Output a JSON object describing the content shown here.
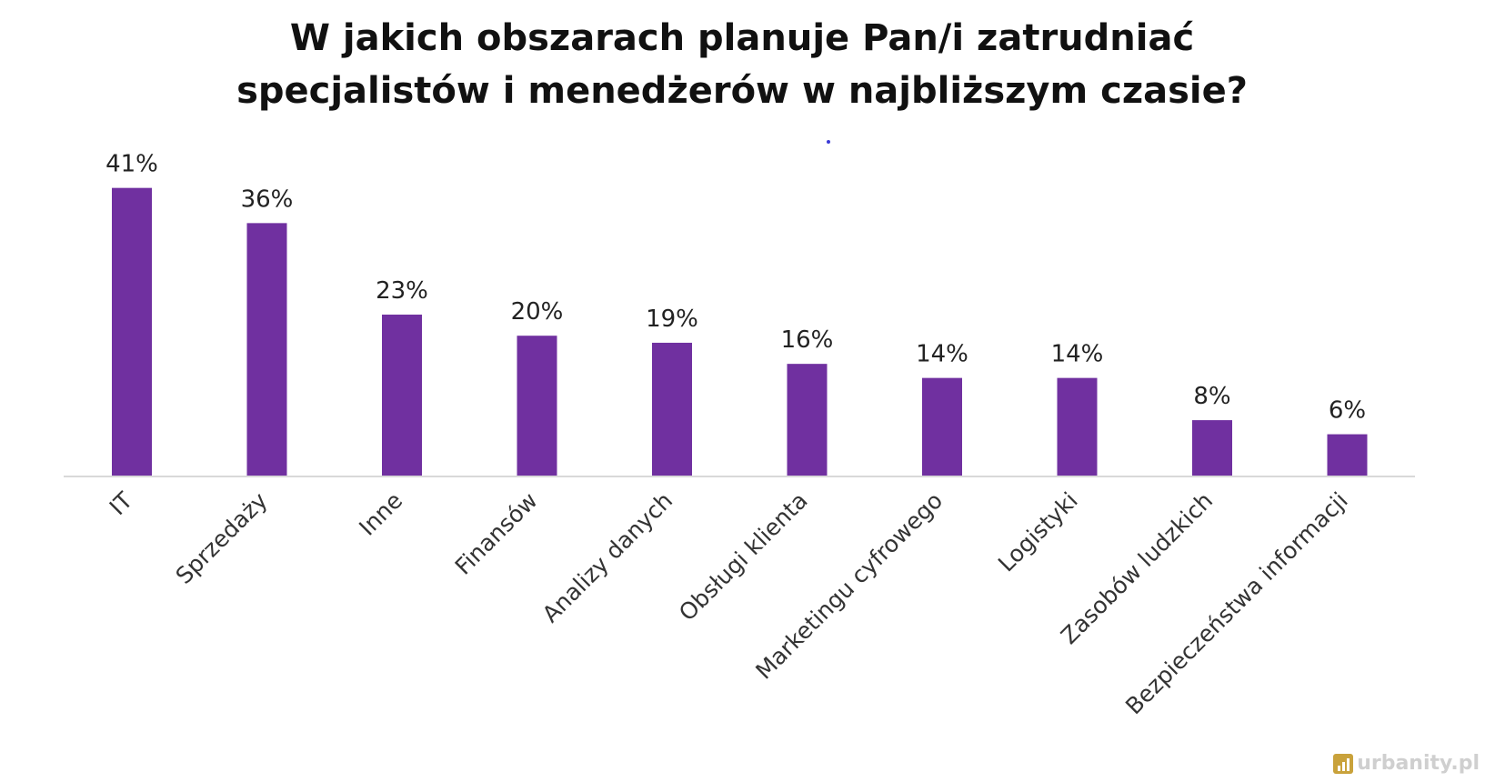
{
  "chart_data": {
    "type": "bar",
    "title": [
      "W jakich obszarach planuje Pan/i zatrudniać",
      "specjalistów i menedżerów w najbliższym czasie?"
    ],
    "categories": [
      "IT",
      "Sprzedaży",
      "Inne",
      "Finansów",
      "Analizy danych",
      "Obsługi klienta",
      "Marketingu cyfrowego",
      "Logistyki",
      "Zasobów ludzkich",
      "Bezpieczeństwa informacji"
    ],
    "values": [
      41,
      36,
      23,
      20,
      19,
      16,
      14,
      14,
      8,
      6
    ],
    "value_labels": [
      "41%",
      "36%",
      "23%",
      "20%",
      "19%",
      "16%",
      "14%",
      "14%",
      "8%",
      "6%"
    ],
    "ylim": [
      0,
      45
    ],
    "grid": false,
    "bar_color": "#7030a0",
    "axis_color": "#d9d9d9"
  },
  "watermark": {
    "text": "urbanity.pl"
  }
}
